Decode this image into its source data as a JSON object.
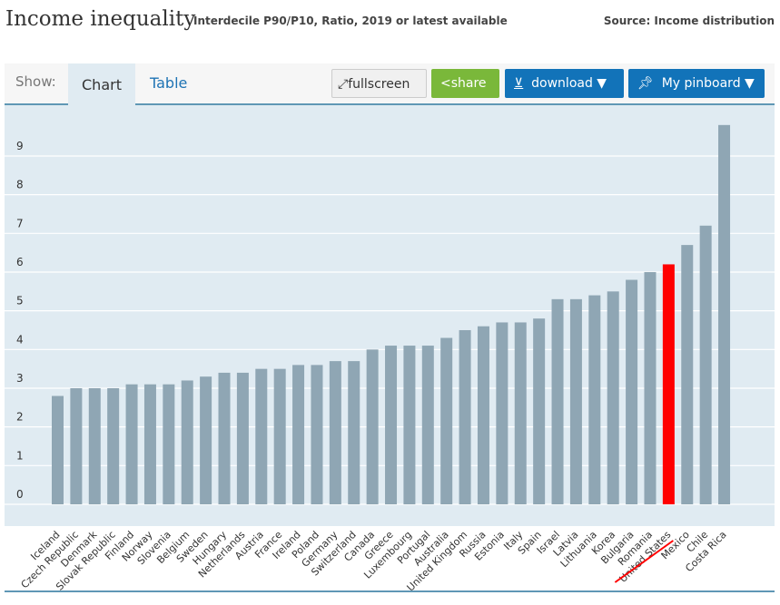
{
  "header": {
    "title": "Income inequality",
    "subtitle": "Interdecile P90/P10, Ratio, 2019 or latest available",
    "source": "Source: Income distribution"
  },
  "toolbar": {
    "show_label": "Show:",
    "tabs": [
      "Chart",
      "Table"
    ],
    "active_tab": "Chart",
    "fullscreen": "fullscreen",
    "share": "share",
    "download": "download ▼",
    "pinboard": "My pinboard ▼"
  },
  "colors": {
    "bar": "#8fa6b4",
    "highlight": "#ff0000",
    "plot_bg": "#e0ebf2",
    "share": "#7ab83a",
    "primary": "#1273b9"
  },
  "chart_data": {
    "type": "bar",
    "title": "",
    "xlabel": "",
    "ylabel": "",
    "ylim": [
      0,
      10
    ],
    "grid": true,
    "yticks": [
      "0",
      "1",
      "2",
      "3",
      "4",
      "5",
      "6",
      "7",
      "8",
      "9"
    ],
    "highlight": "United States",
    "categories": [
      "Iceland",
      "Czech Republic",
      "Denmark",
      "Slovak Republic",
      "Finland",
      "Norway",
      "Slovenia",
      "Belgium",
      "Sweden",
      "Hungary",
      "Netherlands",
      "Austria",
      "France",
      "Ireland",
      "Poland",
      "Germany",
      "Switzerland",
      "Canada",
      "Greece",
      "Luxembourg",
      "Portugal",
      "Australia",
      "United Kingdom",
      "Russia",
      "Estonia",
      "Italy",
      "Spain",
      "Israel",
      "Latvia",
      "Lithuania",
      "Korea",
      "Bulgaria",
      "Romania",
      "United States",
      "Mexico",
      "Chile",
      "Costa Rica"
    ],
    "values": [
      2.8,
      3.0,
      3.0,
      3.0,
      3.1,
      3.1,
      3.1,
      3.2,
      3.3,
      3.4,
      3.4,
      3.5,
      3.5,
      3.6,
      3.6,
      3.7,
      3.7,
      4.0,
      4.1,
      4.1,
      4.1,
      4.3,
      4.5,
      4.6,
      4.7,
      4.7,
      4.8,
      5.3,
      5.3,
      5.4,
      5.5,
      5.8,
      6.0,
      6.2,
      6.7,
      7.2,
      9.8
    ]
  }
}
